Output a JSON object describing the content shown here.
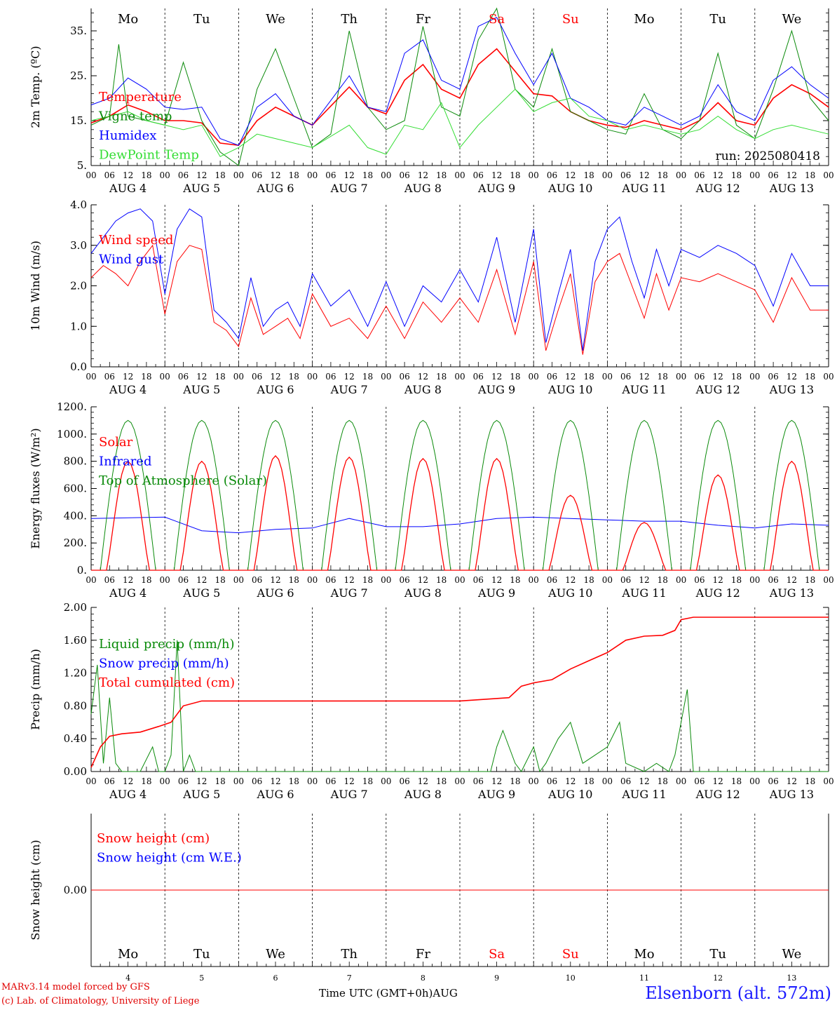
{
  "chart_data": [
    {
      "type": "line",
      "ylabel": "2m Temp. (ºC)",
      "ylim": [
        5,
        40
      ],
      "yticks": [
        "5.",
        "15.",
        "25.",
        "35."
      ],
      "ytick_values": [
        5,
        15,
        25,
        35
      ],
      "legend": [
        "Temperature",
        "Vigne temp",
        "Humidex",
        "DewPoint Temp"
      ],
      "annotation": "run: 2025080418",
      "x_unit": "hours since 2025-08-04 00 UTC",
      "series": [
        {
          "name": "Temperature",
          "color": "#ff0000",
          "x": [
            0,
            6,
            12,
            18,
            24,
            30,
            36,
            42,
            48,
            54,
            60,
            66,
            72,
            84,
            90,
            96,
            102,
            108,
            114,
            120,
            126,
            132,
            138,
            144,
            150,
            156,
            162,
            168,
            174,
            180,
            186,
            192,
            198,
            204,
            210,
            216,
            222,
            228,
            234,
            240
          ],
          "y": [
            14.5,
            16,
            18.5,
            17,
            15,
            15,
            14.5,
            10,
            9.5,
            15,
            18,
            16,
            14,
            22.5,
            18,
            16.5,
            24,
            27.5,
            22,
            20,
            27.5,
            31,
            26,
            21,
            20.5,
            17,
            15,
            14,
            13.5,
            15,
            14,
            13,
            15,
            19,
            15,
            14,
            20,
            23,
            21,
            18
          ]
        },
        {
          "name": "Vigne temp",
          "color": "#0a8a0a",
          "x": [
            0,
            6,
            9,
            12,
            18,
            24,
            30,
            36,
            42,
            48,
            54,
            60,
            66,
            72,
            78,
            84,
            90,
            96,
            102,
            108,
            114,
            120,
            126,
            132,
            138,
            144,
            150,
            156,
            162,
            168,
            174,
            180,
            186,
            192,
            198,
            204,
            210,
            216,
            222,
            228,
            234,
            240
          ],
          "y": [
            14,
            16,
            32,
            16,
            15,
            14,
            28,
            15,
            8,
            5,
            22,
            31,
            20,
            9,
            12,
            35,
            18,
            13,
            15,
            36,
            18,
            16,
            33,
            40,
            22,
            18,
            31,
            17,
            15,
            13,
            12,
            21,
            13,
            11,
            15,
            30,
            14,
            11,
            22,
            35,
            20,
            15
          ]
        },
        {
          "name": "Humidex",
          "color": "#0000ff",
          "x": [
            0,
            6,
            12,
            18,
            24,
            30,
            36,
            42,
            48,
            54,
            60,
            66,
            72,
            84,
            90,
            96,
            102,
            108,
            114,
            120,
            126,
            132,
            138,
            144,
            150,
            156,
            162,
            168,
            174,
            180,
            186,
            192,
            198,
            204,
            210,
            216,
            222,
            228,
            234,
            240
          ],
          "y": [
            18.5,
            20,
            24.5,
            22,
            18,
            17.5,
            18,
            11,
            9.5,
            18,
            21,
            16,
            14,
            25,
            18,
            17,
            30,
            33,
            24,
            22,
            36,
            38,
            30,
            23,
            30,
            20,
            18,
            15,
            14,
            18,
            16,
            14,
            16,
            23,
            17,
            15,
            24,
            27,
            23,
            20
          ]
        },
        {
          "name": "DewPoint Temp",
          "color": "#33dd33",
          "x": [
            0,
            6,
            12,
            18,
            24,
            30,
            36,
            42,
            48,
            54,
            60,
            66,
            72,
            84,
            90,
            96,
            102,
            108,
            114,
            120,
            126,
            132,
            138,
            144,
            150,
            156,
            162,
            168,
            174,
            180,
            186,
            192,
            198,
            204,
            210,
            216,
            222,
            228,
            234,
            240
          ],
          "y": [
            15,
            16,
            17,
            15,
            14,
            13,
            14,
            7,
            9,
            12,
            11,
            10,
            9,
            14,
            9,
            7.5,
            14,
            13,
            19,
            9,
            14,
            18,
            22,
            17,
            19,
            20,
            16,
            15,
            13,
            14,
            13,
            12,
            13,
            16,
            13,
            11,
            13,
            14,
            13,
            12
          ]
        }
      ]
    },
    {
      "type": "line",
      "ylabel": "10m Wind (m/s)",
      "ylim": [
        0,
        4
      ],
      "yticks": [
        "0.0",
        "1.0",
        "2.0",
        "3.0",
        "4.0"
      ],
      "ytick_values": [
        0,
        1,
        2,
        3,
        4
      ],
      "legend": [
        "Wind speed",
        "Wind gust"
      ],
      "x_unit": "hours since 2025-08-04 00 UTC",
      "series": [
        {
          "name": "Wind speed",
          "color": "#ff0000",
          "x": [
            0,
            4,
            8,
            12,
            16,
            20,
            24,
            28,
            32,
            36,
            40,
            44,
            48,
            52,
            56,
            60,
            64,
            68,
            72,
            78,
            84,
            90,
            96,
            102,
            108,
            114,
            120,
            126,
            132,
            138,
            144,
            148,
            152,
            156,
            160,
            164,
            168,
            172,
            176,
            180,
            184,
            188,
            192,
            198,
            204,
            210,
            216,
            222,
            228,
            234,
            240
          ],
          "y": [
            2.2,
            2.5,
            2.3,
            2.0,
            2.6,
            3.0,
            1.3,
            2.6,
            3.0,
            2.9,
            1.1,
            0.9,
            0.5,
            1.7,
            0.8,
            1.0,
            1.2,
            0.7,
            1.8,
            1.0,
            1.2,
            0.7,
            1.5,
            0.7,
            1.6,
            1.1,
            1.7,
            1.1,
            2.4,
            0.8,
            2.6,
            0.4,
            1.4,
            2.3,
            0.3,
            2.1,
            2.6,
            2.8,
            2.0,
            1.2,
            2.3,
            1.4,
            2.2,
            2.1,
            2.3,
            2.1,
            1.9,
            1.1,
            2.2,
            1.4,
            1.4
          ]
        },
        {
          "name": "Wind gust",
          "color": "#0000ff",
          "x": [
            0,
            4,
            8,
            12,
            16,
            20,
            24,
            28,
            32,
            36,
            40,
            44,
            48,
            52,
            56,
            60,
            64,
            68,
            72,
            78,
            84,
            90,
            96,
            102,
            108,
            114,
            120,
            126,
            132,
            138,
            144,
            148,
            152,
            156,
            160,
            164,
            168,
            172,
            176,
            180,
            184,
            188,
            192,
            198,
            204,
            210,
            216,
            222,
            228,
            234,
            240
          ],
          "y": [
            2.8,
            3.2,
            3.6,
            3.8,
            3.9,
            3.6,
            1.8,
            3.4,
            3.9,
            3.7,
            1.4,
            1.1,
            0.7,
            2.2,
            1.0,
            1.4,
            1.6,
            1.0,
            2.3,
            1.5,
            1.9,
            1.0,
            2.1,
            1.0,
            2.0,
            1.6,
            2.4,
            1.6,
            3.2,
            1.1,
            3.4,
            0.6,
            1.8,
            2.9,
            0.4,
            2.6,
            3.4,
            3.7,
            2.6,
            1.7,
            2.9,
            2.0,
            2.9,
            2.7,
            3.0,
            2.8,
            2.5,
            1.5,
            2.8,
            2.0,
            2.0
          ]
        }
      ]
    },
    {
      "type": "line",
      "ylabel": "Energy fluxes (W/m²)",
      "ylim": [
        0,
        1200
      ],
      "yticks": [
        "0.",
        "200.",
        "400.",
        "600.",
        "800.",
        "1000.",
        "1200."
      ],
      "ytick_values": [
        0,
        200,
        400,
        600,
        800,
        1000,
        1200
      ],
      "legend": [
        "Solar",
        "Infrared",
        "Top of Atmosphere (Solar)"
      ],
      "x_unit": "hours since 2025-08-04 00 UTC",
      "toa_peak": 1100,
      "solar_peaks": [
        800,
        800,
        840,
        830,
        820,
        820,
        550,
        350,
        700,
        800
      ],
      "series": [
        {
          "name": "Infrared",
          "color": "#0000ff",
          "x": [
            0,
            12,
            24,
            36,
            48,
            60,
            72,
            84,
            96,
            108,
            120,
            132,
            144,
            156,
            168,
            180,
            192,
            204,
            216,
            228,
            240
          ],
          "y": [
            380,
            385,
            390,
            290,
            275,
            300,
            310,
            380,
            320,
            320,
            340,
            380,
            390,
            380,
            370,
            360,
            360,
            330,
            310,
            340,
            330
          ]
        }
      ]
    },
    {
      "type": "line",
      "ylabel": "Precip (mm/h)",
      "ylim": [
        0,
        2
      ],
      "yticks": [
        "0.00",
        "0.40",
        "0.80",
        "1.20",
        "1.60",
        "2.00"
      ],
      "ytick_values": [
        0,
        0.4,
        0.8,
        1.2,
        1.6,
        2.0
      ],
      "legend": [
        "Liquid precip (mm/h)",
        "Snow precip (mm/h)",
        "Total cumulated (cm)"
      ],
      "x_unit": "hours since 2025-08-04 00 UTC",
      "series": [
        {
          "name": "Liquid precip (mm/h)",
          "color": "#0a8a0a",
          "x": [
            0,
            2,
            4,
            6,
            8,
            10,
            12,
            16,
            20,
            22,
            24,
            26,
            28,
            30,
            32,
            34,
            36,
            40,
            48,
            96,
            130,
            132,
            134,
            138,
            140,
            144,
            146,
            148,
            152,
            156,
            160,
            164,
            168,
            172,
            174,
            180,
            184,
            188,
            190,
            194,
            196,
            200,
            240
          ],
          "y": [
            0.7,
            1.3,
            0.1,
            0.9,
            0.1,
            0.0,
            0.0,
            0.0,
            0.3,
            0.0,
            0.0,
            0.2,
            1.6,
            0.0,
            0.2,
            0.0,
            0.0,
            0.0,
            0.0,
            0.0,
            0.0,
            0.3,
            0.5,
            0.1,
            0.0,
            0.3,
            0.0,
            0.1,
            0.4,
            0.6,
            0.1,
            0.2,
            0.3,
            0.6,
            0.1,
            0.0,
            0.1,
            0.0,
            0.2,
            1.0,
            0.0,
            0.0,
            0.0
          ]
        },
        {
          "name": "Total cumulated (cm)",
          "color": "#ff0000",
          "x": [
            0,
            3,
            6,
            10,
            16,
            22,
            26,
            30,
            36,
            48,
            96,
            120,
            136,
            140,
            144,
            150,
            156,
            162,
            168,
            174,
            180,
            186,
            190,
            192,
            196,
            198,
            240
          ],
          "y": [
            0.05,
            0.3,
            0.43,
            0.46,
            0.48,
            0.55,
            0.6,
            0.8,
            0.86,
            0.86,
            0.86,
            0.86,
            0.9,
            1.04,
            1.08,
            1.12,
            1.25,
            1.35,
            1.45,
            1.6,
            1.65,
            1.66,
            1.72,
            1.85,
            1.88,
            1.88,
            1.88
          ]
        }
      ]
    },
    {
      "type": "line",
      "ylabel": "Snow height (cm)",
      "ylim": [
        -1,
        1
      ],
      "yticks": [
        "0.00"
      ],
      "ytick_values": [
        0
      ],
      "legend": [
        "Snow height (cm)",
        "Snow height (cm W.E.)"
      ],
      "x_unit": "hours since 2025-08-04 00 UTC",
      "series": [
        {
          "name": "Snow height (cm)",
          "color": "#ff0000",
          "x": [
            0,
            240
          ],
          "y": [
            0,
            0
          ]
        }
      ]
    }
  ],
  "days": [
    {
      "wd": "Mo",
      "num": "4",
      "weekend": false
    },
    {
      "wd": "Tu",
      "num": "5",
      "weekend": false
    },
    {
      "wd": "We",
      "num": "6",
      "weekend": false
    },
    {
      "wd": "Th",
      "num": "7",
      "weekend": false
    },
    {
      "wd": "Fr",
      "num": "8",
      "weekend": false
    },
    {
      "wd": "Sa",
      "num": "9",
      "weekend": true
    },
    {
      "wd": "Su",
      "num": "10",
      "weekend": true
    },
    {
      "wd": "Mo",
      "num": "11",
      "weekend": false
    },
    {
      "wd": "Tu",
      "num": "12",
      "weekend": false
    },
    {
      "wd": "We",
      "num": "13",
      "weekend": false
    }
  ],
  "hour_labels": [
    "00",
    "06",
    "12",
    "18"
  ],
  "end_hour_label": "00",
  "month_prefix": "AUG",
  "month_label": "AUG",
  "xlabel": "Time UTC (GMT+0h)",
  "colors": {
    "weekend": "#ff0000",
    "weekday": "#000000"
  },
  "footer": {
    "credit1": "MARv3.14 model forced by GFS",
    "credit2": "(c) Lab. of Climatology, University of Liege",
    "location": "Elsenborn (alt. 572m)"
  }
}
